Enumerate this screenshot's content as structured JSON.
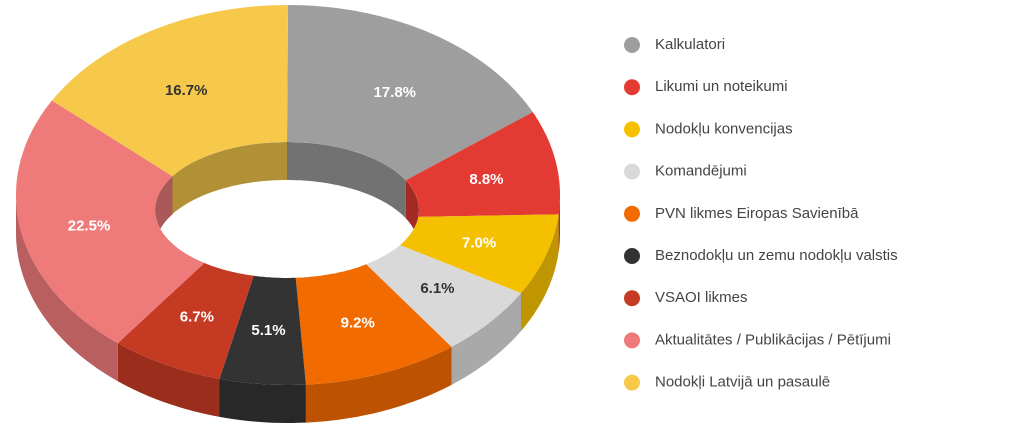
{
  "chart_data": {
    "type": "donut3d",
    "categories": [
      "Kalkulatori",
      "Likumi un noteikumi",
      "Nodokļu konvencijas",
      "Komandējumi",
      "PVN likmes Eiropas Savienībā",
      "Beznodokļu un zemu nodokļu valstis",
      "VSAOI likmes",
      "Aktualitātes / Publikācijas / Pētījumi",
      "Nodokļi Latvijā un pasaulē"
    ],
    "values": [
      17.8,
      8.8,
      7.0,
      6.1,
      9.2,
      5.1,
      6.7,
      22.5,
      16.7
    ],
    "value_labels": [
      "17.8%",
      "8.8%",
      "7.0%",
      "6.1%",
      "9.2%",
      "5.1%",
      "6.7%",
      "22.5%",
      "16.7%"
    ],
    "colors": [
      "#9e9e9e",
      "#e33b33",
      "#f5c000",
      "#d9d9d9",
      "#f26b00",
      "#333333",
      "#c53a22",
      "#ee7a7a",
      "#f7c94b"
    ],
    "legend": "right"
  }
}
